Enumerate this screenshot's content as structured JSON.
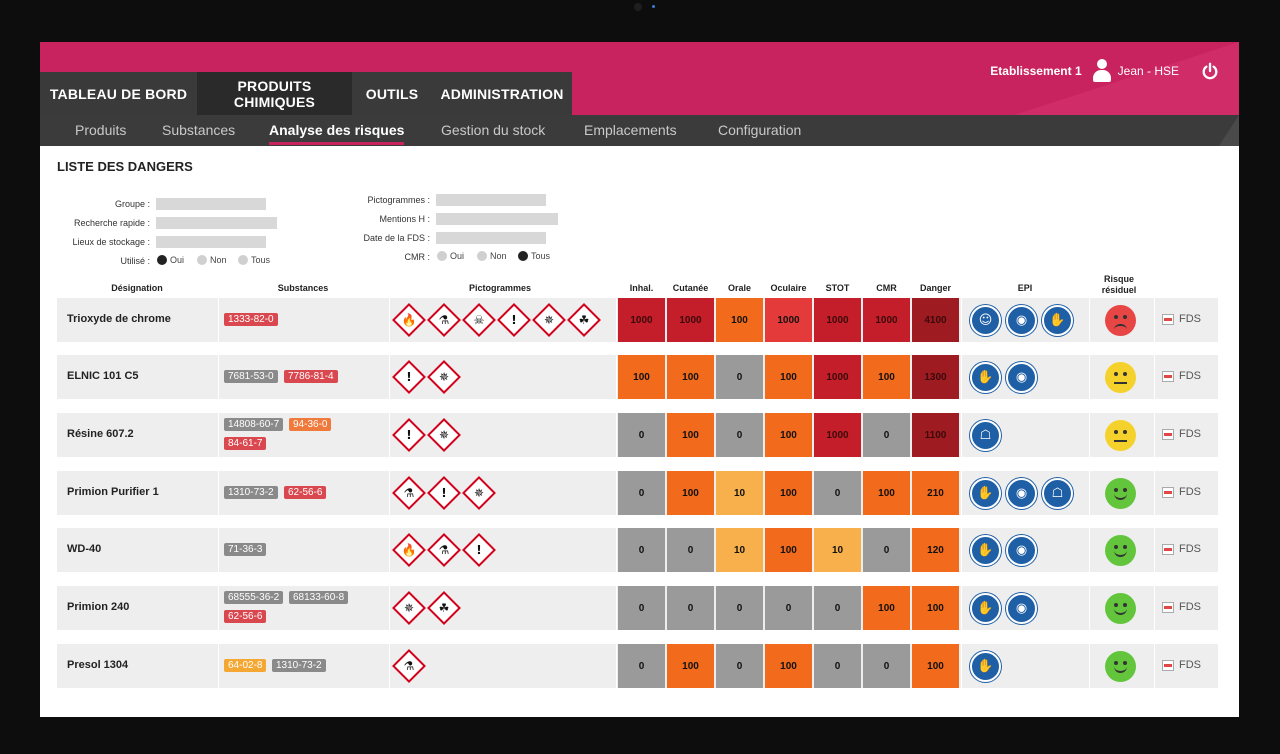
{
  "colors": {
    "brand": "#c9235f",
    "nav_dark": "#3a3a3a",
    "cas_grey": "#8a8a8a",
    "cas_red": "#d9484e",
    "cas_orange": "#f07a3c",
    "cas_yellow": "#f5a733",
    "risk_levels": {
      "grey": "#9a9a9a",
      "light_orange": "#f7b04c",
      "orange": "#f26a1b",
      "red": "#e53a3a",
      "dark_red": "#c41e2a",
      "darkest_red": "#9e1b22"
    },
    "epi_blue": "#1f5fa6",
    "smiley_red": "#e84545",
    "smiley_yellow": "#f5d22b",
    "smiley_green": "#63c53c"
  },
  "header": {
    "establishment": "Etablissement 1",
    "user": "Jean - HSE",
    "user_icon": "user-icon",
    "power_icon": "power-icon",
    "main_tabs": [
      "TABLEAU DE BORD",
      "PRODUITS CHIMIQUES",
      "OUTILS",
      "ADMINISTRATION"
    ],
    "active_main_tab": "PRODUITS CHIMIQUES",
    "sub_tabs": [
      "Produits",
      "Substances",
      "Analyse des risques",
      "Gestion du stock",
      "Emplacements",
      "Configuration"
    ],
    "active_sub_tab": "Analyse des risques"
  },
  "page": {
    "title": "LISTE DES DANGERS"
  },
  "filters": {
    "left": [
      {
        "label": "Groupe :",
        "value": ""
      },
      {
        "label": "Recherche rapide :",
        "value": ""
      },
      {
        "label": "Lieux de stockage :",
        "value": ""
      }
    ],
    "right": [
      {
        "label": "Pictogrammes :",
        "value": ""
      },
      {
        "label": "Mentions H :",
        "value": ""
      },
      {
        "label": "Date de la FDS :",
        "value": ""
      }
    ],
    "utilise": {
      "label": "Utilisé :",
      "options": [
        "Oui",
        "Non",
        "Tous"
      ],
      "selected": "Oui"
    },
    "cmr": {
      "label": "CMR :",
      "options": [
        "Oui",
        "Non",
        "Tous"
      ],
      "selected": "Tous"
    }
  },
  "table": {
    "columns": {
      "designation": "Désignation",
      "substances": "Substances",
      "pictogrammes": "Pictogrammes",
      "scores": [
        "Inhal.",
        "Cutanée",
        "Orale",
        "Oculaire",
        "STOT",
        "CMR",
        "Danger"
      ],
      "epi": "EPI",
      "risque": "Risque résiduel"
    },
    "fds_label": "FDS",
    "rows": [
      {
        "name": "Trioxyde de chrome",
        "cas": [
          {
            "code": "1333-82-0",
            "color": "red"
          }
        ],
        "pictos": [
          "oxidizer",
          "corrosive",
          "toxic",
          "irritant",
          "health-hazard",
          "environment"
        ],
        "scores": [
          {
            "v": "1000",
            "c": "dark_red"
          },
          {
            "v": "1000",
            "c": "dark_red"
          },
          {
            "v": "100",
            "c": "orange"
          },
          {
            "v": "1000",
            "c": "red"
          },
          {
            "v": "1000",
            "c": "dark_red"
          },
          {
            "v": "1000",
            "c": "dark_red"
          },
          {
            "v": "4100",
            "c": "darkest_red"
          }
        ],
        "epi": [
          "mask",
          "goggles",
          "gloves"
        ],
        "risk": "red"
      },
      {
        "name": "ELNIC 101 C5",
        "cas": [
          {
            "code": "7681-53-0",
            "color": "grey"
          },
          {
            "code": "7786-81-4",
            "color": "red"
          }
        ],
        "pictos": [
          "irritant",
          "health-hazard"
        ],
        "scores": [
          {
            "v": "100",
            "c": "orange"
          },
          {
            "v": "100",
            "c": "orange"
          },
          {
            "v": "0",
            "c": "grey"
          },
          {
            "v": "100",
            "c": "orange"
          },
          {
            "v": "1000",
            "c": "dark_red"
          },
          {
            "v": "100",
            "c": "orange"
          },
          {
            "v": "1300",
            "c": "darkest_red"
          }
        ],
        "epi": [
          "gloves",
          "goggles"
        ],
        "risk": "yellow"
      },
      {
        "name": "Résine 607.2",
        "cas": [
          {
            "code": "14808-60-7",
            "color": "grey"
          },
          {
            "code": "94-36-0",
            "color": "orange"
          },
          {
            "code": "84-61-7",
            "color": "red"
          }
        ],
        "pictos": [
          "irritant",
          "health-hazard"
        ],
        "scores": [
          {
            "v": "0",
            "c": "grey"
          },
          {
            "v": "100",
            "c": "orange"
          },
          {
            "v": "0",
            "c": "grey"
          },
          {
            "v": "100",
            "c": "orange"
          },
          {
            "v": "1000",
            "c": "dark_red"
          },
          {
            "v": "0",
            "c": "grey"
          },
          {
            "v": "1100",
            "c": "darkest_red"
          }
        ],
        "epi": [
          "coat"
        ],
        "risk": "yellow"
      },
      {
        "name": "Primion Purifier 1",
        "cas": [
          {
            "code": "1310-73-2",
            "color": "grey"
          },
          {
            "code": "62-56-6",
            "color": "red"
          }
        ],
        "pictos": [
          "corrosive",
          "irritant",
          "health-hazard"
        ],
        "scores": [
          {
            "v": "0",
            "c": "grey"
          },
          {
            "v": "100",
            "c": "orange"
          },
          {
            "v": "10",
            "c": "light_orange"
          },
          {
            "v": "100",
            "c": "orange"
          },
          {
            "v": "0",
            "c": "grey"
          },
          {
            "v": "100",
            "c": "orange"
          },
          {
            "v": "210",
            "c": "orange"
          }
        ],
        "epi": [
          "gloves",
          "goggles",
          "coat"
        ],
        "risk": "green"
      },
      {
        "name": "WD-40",
        "cas": [
          {
            "code": "71-36-3",
            "color": "grey"
          }
        ],
        "pictos": [
          "flammable",
          "corrosive",
          "irritant"
        ],
        "scores": [
          {
            "v": "0",
            "c": "grey"
          },
          {
            "v": "0",
            "c": "grey"
          },
          {
            "v": "10",
            "c": "light_orange"
          },
          {
            "v": "100",
            "c": "orange"
          },
          {
            "v": "10",
            "c": "light_orange"
          },
          {
            "v": "0",
            "c": "grey"
          },
          {
            "v": "120",
            "c": "orange"
          }
        ],
        "epi": [
          "gloves",
          "goggles"
        ],
        "risk": "green"
      },
      {
        "name": "Primion 240",
        "cas": [
          {
            "code": "68555-36-2",
            "color": "grey"
          },
          {
            "code": "68133-60-8",
            "color": "grey"
          },
          {
            "code": "62-56-6",
            "color": "red"
          }
        ],
        "pictos": [
          "health-hazard",
          "environment"
        ],
        "scores": [
          {
            "v": "0",
            "c": "grey"
          },
          {
            "v": "0",
            "c": "grey"
          },
          {
            "v": "0",
            "c": "grey"
          },
          {
            "v": "0",
            "c": "grey"
          },
          {
            "v": "0",
            "c": "grey"
          },
          {
            "v": "100",
            "c": "orange"
          },
          {
            "v": "100",
            "c": "orange"
          }
        ],
        "epi": [
          "gloves",
          "goggles"
        ],
        "risk": "green"
      },
      {
        "name": "Presol 1304",
        "cas": [
          {
            "code": "64-02-8",
            "color": "yellow"
          },
          {
            "code": "1310-73-2",
            "color": "grey"
          }
        ],
        "pictos": [
          "corrosive"
        ],
        "scores": [
          {
            "v": "0",
            "c": "grey"
          },
          {
            "v": "100",
            "c": "orange"
          },
          {
            "v": "0",
            "c": "grey"
          },
          {
            "v": "100",
            "c": "orange"
          },
          {
            "v": "0",
            "c": "grey"
          },
          {
            "v": "0",
            "c": "grey"
          },
          {
            "v": "100",
            "c": "orange"
          }
        ],
        "epi": [
          "gloves"
        ],
        "risk": "green"
      }
    ]
  }
}
